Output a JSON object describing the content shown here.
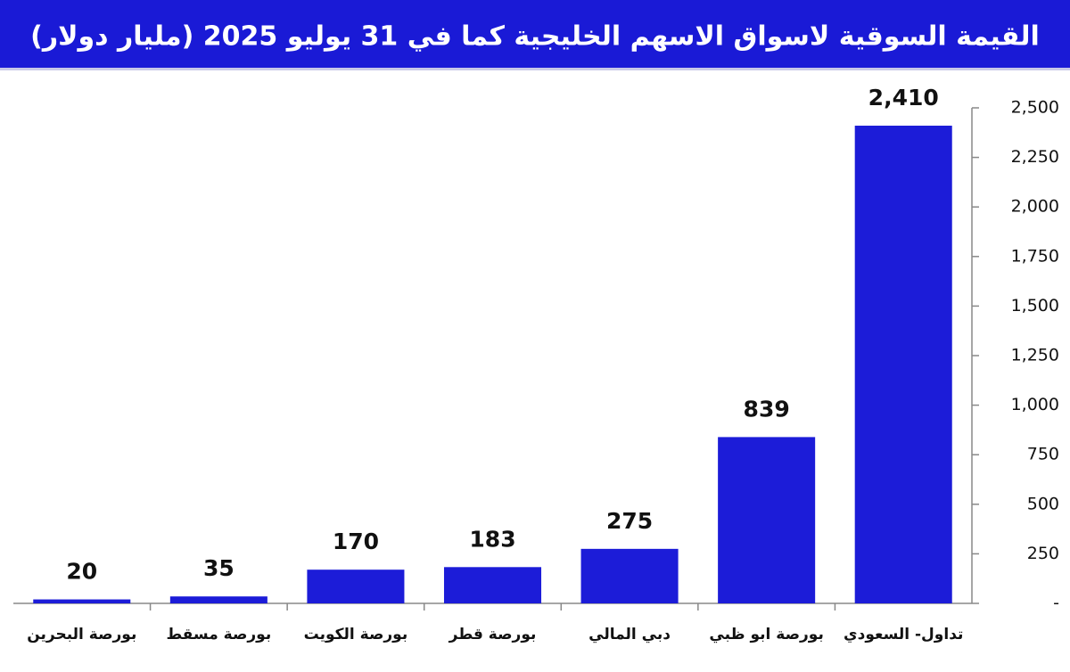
{
  "chart_data": {
    "type": "bar",
    "title": "القيمة السوقية لاسواق الاسهم الخليجية كما في 31 يوليو 2025 (مليار دولار)",
    "categories": [
      "بورصة البحرين",
      "بورصة مسقط",
      "بورصة الكويت",
      "بورصة قطر",
      "دبي المالي",
      "بورصة ابو ظبي",
      "تداول- السعودي"
    ],
    "values": [
      20,
      35,
      170,
      183,
      275,
      839,
      2410
    ],
    "value_labels": [
      "20",
      "35",
      "170",
      "183",
      "275",
      "839",
      "2,410"
    ],
    "color": "#1c1cd8",
    "ylim": [
      0,
      2500
    ],
    "yticks": [
      {
        "value": 0,
        "label": "-"
      },
      250,
      500,
      750,
      {
        "value": 1000,
        "label": "1,000"
      },
      {
        "value": 1250,
        "label": "1,250"
      },
      {
        "value": 1500,
        "label": "1,500"
      },
      {
        "value": 1750,
        "label": "1,750"
      },
      {
        "value": 2000,
        "label": "2,000"
      },
      {
        "value": 2250,
        "label": "2,250"
      },
      {
        "value": 2500,
        "label": "2,500"
      }
    ],
    "y_axis_side": "right"
  }
}
